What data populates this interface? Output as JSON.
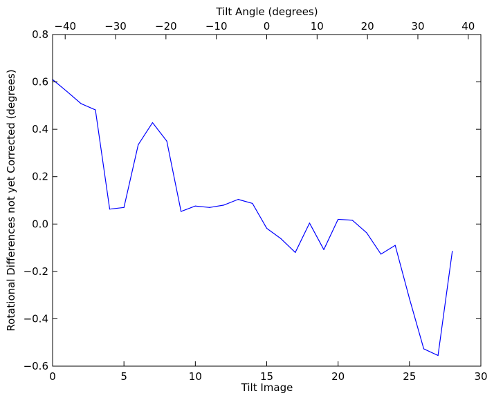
{
  "chart_data": {
    "type": "line",
    "xlabel": "Tilt Image",
    "ylabel": "Rotational Differences not yet Corrected (degrees)",
    "top_xlabel": "Tilt Angle (degrees)",
    "xlim": [
      0,
      30
    ],
    "ylim": [
      -0.6,
      0.8
    ],
    "top_xlim": [
      -42.5,
      42.5
    ],
    "x_ticks": [
      0,
      5,
      10,
      15,
      20,
      25,
      30
    ],
    "y_ticks": [
      -0.6,
      -0.4,
      -0.2,
      0.0,
      0.2,
      0.4,
      0.6,
      0.8
    ],
    "y_tick_labels": [
      "−0.6",
      "−0.4",
      "−0.2",
      "0.0",
      "0.2",
      "0.4",
      "0.6",
      "0.8"
    ],
    "top_ticks": [
      -40,
      -30,
      -20,
      -10,
      0,
      10,
      20,
      30,
      40
    ],
    "top_tick_labels": [
      "−40",
      "−30",
      "−20",
      "−10",
      "0",
      "10",
      "20",
      "30",
      "40"
    ],
    "grid": false,
    "series": [
      {
        "color": "#0000ff",
        "x": [
          0,
          1,
          2,
          3,
          4,
          5,
          6,
          7,
          8,
          9,
          10,
          11,
          12,
          13,
          14,
          15,
          16,
          17,
          18,
          19,
          20,
          21,
          22,
          23,
          24,
          25,
          26,
          27,
          28
        ],
        "values": [
          0.61,
          0.56,
          0.508,
          0.482,
          0.063,
          0.07,
          0.335,
          0.428,
          0.35,
          0.053,
          0.076,
          0.07,
          0.08,
          0.104,
          0.087,
          -0.018,
          -0.062,
          -0.12,
          0.004,
          -0.108,
          0.02,
          0.016,
          -0.037,
          -0.127,
          -0.09,
          -0.315,
          -0.527,
          -0.555,
          -0.115
        ]
      }
    ]
  }
}
